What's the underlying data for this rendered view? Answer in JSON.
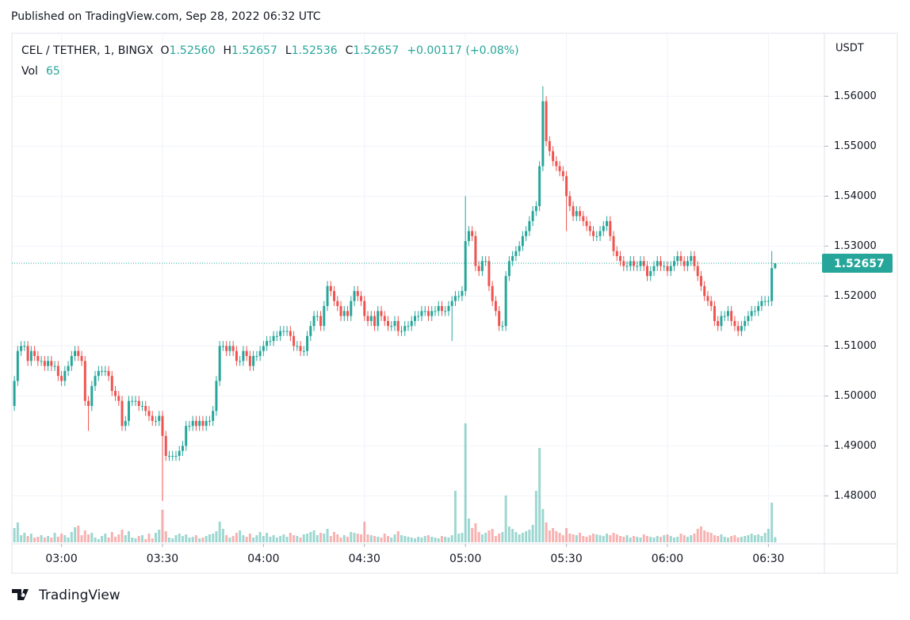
{
  "published": "Published on TradingView.com, Sep 28, 2022 06:32 UTC",
  "brand": "TradingView",
  "chart_data": {
    "type": "candlestick",
    "legend": {
      "symbol": "CEL / TETHER, 1, BINGX",
      "o": "O",
      "o_value": "1.52560",
      "h": "H",
      "h_value": "1.52657",
      "l": "L",
      "l_value": "1.52536",
      "c": "C",
      "c_value": "1.52657",
      "change": "+0.00117 (+0.08%)",
      "vol": "Vol"
    },
    "currency": "USDT",
    "up_color": "#26a69a",
    "down_color": "#ef5350",
    "grid": true,
    "x": [
      "02:46",
      "02:47",
      "02:48",
      "02:49",
      "02:50",
      "02:51",
      "02:52",
      "02:53",
      "02:54",
      "02:55",
      "02:56",
      "02:57",
      "02:58",
      "02:59",
      "03:00",
      "03:01",
      "03:02",
      "03:03",
      "03:04",
      "03:05",
      "03:06",
      "03:07",
      "03:08",
      "03:09",
      "03:10",
      "03:11",
      "03:12",
      "03:13",
      "03:14",
      "03:15",
      "03:16",
      "03:17",
      "03:18",
      "03:19",
      "03:20",
      "03:21",
      "03:22",
      "03:23",
      "03:24",
      "03:25",
      "03:26",
      "03:27",
      "03:28",
      "03:29",
      "03:30",
      "03:31",
      "03:32",
      "03:33",
      "03:34",
      "03:35",
      "03:36",
      "03:37",
      "03:38",
      "03:39",
      "03:40",
      "03:41",
      "03:42",
      "03:43",
      "03:44",
      "03:45",
      "03:46",
      "03:47",
      "03:48",
      "03:49",
      "03:50",
      "03:51",
      "03:52",
      "03:53",
      "03:54",
      "03:55",
      "03:56",
      "03:57",
      "03:58",
      "03:59",
      "04:00",
      "04:01",
      "04:02",
      "04:03",
      "04:04",
      "04:05",
      "04:06",
      "04:07",
      "04:08",
      "04:09",
      "04:10",
      "04:11",
      "04:12",
      "04:13",
      "04:14",
      "04:15",
      "04:16",
      "04:17",
      "04:18",
      "04:19",
      "04:20",
      "04:21",
      "04:22",
      "04:23",
      "04:24",
      "04:25",
      "04:26",
      "04:27",
      "04:28",
      "04:29",
      "04:30",
      "04:31",
      "04:32",
      "04:33",
      "04:34",
      "04:35",
      "04:36",
      "04:37",
      "04:38",
      "04:39",
      "04:40",
      "04:41",
      "04:42",
      "04:43",
      "04:44",
      "04:45",
      "04:46",
      "04:47",
      "04:48",
      "04:49",
      "04:50",
      "04:51",
      "04:52",
      "04:53",
      "04:54",
      "04:55",
      "04:56",
      "04:57",
      "04:58",
      "04:59",
      "05:00",
      "05:01",
      "05:02",
      "05:03",
      "05:04",
      "05:05",
      "05:06",
      "05:07",
      "05:08",
      "05:09",
      "05:10",
      "05:11",
      "05:12",
      "05:13",
      "05:14",
      "05:15",
      "05:16",
      "05:17",
      "05:18",
      "05:19",
      "05:20",
      "05:21",
      "05:22",
      "05:23",
      "05:24",
      "05:25",
      "05:26",
      "05:27",
      "05:28",
      "05:29",
      "05:30",
      "05:31",
      "05:32",
      "05:33",
      "05:34",
      "05:35",
      "05:36",
      "05:37",
      "05:38",
      "05:39",
      "05:40",
      "05:41",
      "05:42",
      "05:43",
      "05:44",
      "05:45",
      "05:46",
      "05:47",
      "05:48",
      "05:49",
      "05:50",
      "05:51",
      "05:52",
      "05:53",
      "05:54",
      "05:55",
      "05:56",
      "05:57",
      "05:58",
      "05:59",
      "06:00",
      "06:01",
      "06:02",
      "06:03",
      "06:04",
      "06:05",
      "06:06",
      "06:07",
      "06:08",
      "06:09",
      "06:10",
      "06:11",
      "06:12",
      "06:13",
      "06:14",
      "06:15",
      "06:16",
      "06:17",
      "06:18",
      "06:19",
      "06:20",
      "06:21",
      "06:22",
      "06:23",
      "06:24",
      "06:25",
      "06:26",
      "06:27",
      "06:28",
      "06:29",
      "06:30",
      "06:31",
      "06:32"
    ],
    "open": [
      1.498,
      1.503,
      1.509,
      1.51,
      1.51,
      1.507,
      1.509,
      1.508,
      1.507,
      1.507,
      1.506,
      1.507,
      1.506,
      1.506,
      1.504,
      1.503,
      1.505,
      1.506,
      1.508,
      1.509,
      1.508,
      1.507,
      1.499,
      1.498,
      1.502,
      1.504,
      1.505,
      1.505,
      1.505,
      1.504,
      1.501,
      1.5,
      1.499,
      1.494,
      1.495,
      1.499,
      1.499,
      1.499,
      1.498,
      1.498,
      1.497,
      1.496,
      1.495,
      1.495,
      1.496,
      1.492,
      1.488,
      1.488,
      1.488,
      1.488,
      1.489,
      1.49,
      1.494,
      1.494,
      1.495,
      1.494,
      1.495,
      1.494,
      1.495,
      1.495,
      1.497,
      1.503,
      1.51,
      1.51,
      1.509,
      1.51,
      1.509,
      1.507,
      1.507,
      1.509,
      1.508,
      1.506,
      1.508,
      1.508,
      1.509,
      1.51,
      1.511,
      1.511,
      1.512,
      1.512,
      1.513,
      1.513,
      1.513,
      1.512,
      1.51,
      1.51,
      1.509,
      1.509,
      1.512,
      1.514,
      1.516,
      1.516,
      1.514,
      1.518,
      1.522,
      1.521,
      1.519,
      1.518,
      1.516,
      1.517,
      1.516,
      1.519,
      1.521,
      1.52,
      1.519,
      1.516,
      1.515,
      1.516,
      1.514,
      1.517,
      1.516,
      1.515,
      1.514,
      1.514,
      1.515,
      1.513,
      1.513,
      1.514,
      1.514,
      1.515,
      1.516,
      1.516,
      1.517,
      1.517,
      1.516,
      1.517,
      1.517,
      1.518,
      1.517,
      1.517,
      1.518,
      1.519,
      1.52,
      1.52,
      1.521,
      1.531,
      1.533,
      1.532,
      1.526,
      1.525,
      1.527,
      1.527,
      1.522,
      1.519,
      1.517,
      1.514,
      1.514,
      1.524,
      1.527,
      1.528,
      1.529,
      1.53,
      1.532,
      1.533,
      1.535,
      1.537,
      1.538,
      1.546,
      1.559,
      1.551,
      1.549,
      1.547,
      1.546,
      1.545,
      1.544,
      1.54,
      1.538,
      1.536,
      1.537,
      1.536,
      1.535,
      1.534,
      1.533,
      1.532,
      1.532,
      1.533,
      1.534,
      1.535,
      1.532,
      1.529,
      1.528,
      1.527,
      1.526,
      1.526,
      1.527,
      1.526,
      1.526,
      1.527,
      1.526,
      1.524,
      1.525,
      1.526,
      1.527,
      1.526,
      1.526,
      1.525,
      1.526,
      1.527,
      1.528,
      1.527,
      1.526,
      1.527,
      1.528,
      1.526,
      1.524,
      1.522,
      1.52,
      1.519,
      1.518,
      1.515,
      1.514,
      1.516,
      1.516,
      1.517,
      1.515,
      1.514,
      1.513,
      1.514,
      1.515,
      1.516,
      1.517,
      1.517,
      1.518,
      1.519,
      1.519,
      1.519,
      1.5256
    ],
    "high": [
      1.504,
      1.51,
      1.511,
      1.511,
      1.511,
      1.51,
      1.51,
      1.509,
      1.508,
      1.508,
      1.508,
      1.508,
      1.507,
      1.507,
      1.505,
      1.506,
      1.507,
      1.509,
      1.51,
      1.51,
      1.509,
      1.508,
      1.5,
      1.503,
      1.505,
      1.506,
      1.506,
      1.506,
      1.506,
      1.505,
      1.502,
      1.501,
      1.5,
      1.496,
      1.5,
      1.5,
      1.5,
      1.5,
      1.499,
      1.499,
      1.498,
      1.497,
      1.496,
      1.497,
      1.497,
      1.493,
      1.489,
      1.489,
      1.489,
      1.49,
      1.491,
      1.495,
      1.495,
      1.496,
      1.496,
      1.496,
      1.496,
      1.496,
      1.496,
      1.498,
      1.504,
      1.511,
      1.511,
      1.511,
      1.511,
      1.511,
      1.51,
      1.508,
      1.51,
      1.51,
      1.509,
      1.509,
      1.509,
      1.51,
      1.511,
      1.512,
      1.512,
      1.513,
      1.513,
      1.514,
      1.514,
      1.514,
      1.514,
      1.513,
      1.511,
      1.511,
      1.51,
      1.513,
      1.515,
      1.517,
      1.517,
      1.517,
      1.519,
      1.523,
      1.523,
      1.522,
      1.52,
      1.519,
      1.518,
      1.518,
      1.52,
      1.522,
      1.522,
      1.521,
      1.52,
      1.517,
      1.517,
      1.517,
      1.518,
      1.518,
      1.517,
      1.516,
      1.515,
      1.516,
      1.516,
      1.514,
      1.515,
      1.515,
      1.516,
      1.517,
      1.517,
      1.518,
      1.518,
      1.518,
      1.518,
      1.518,
      1.519,
      1.519,
      1.518,
      1.519,
      1.52,
      1.521,
      1.521,
      1.522,
      1.54,
      1.534,
      1.534,
      1.533,
      1.527,
      1.528,
      1.528,
      1.528,
      1.523,
      1.52,
      1.518,
      1.515,
      1.525,
      1.528,
      1.529,
      1.53,
      1.531,
      1.533,
      1.534,
      1.536,
      1.538,
      1.539,
      1.547,
      1.562,
      1.56,
      1.552,
      1.55,
      1.548,
      1.547,
      1.546,
      1.545,
      1.541,
      1.539,
      1.538,
      1.538,
      1.537,
      1.536,
      1.535,
      1.534,
      1.533,
      1.534,
      1.535,
      1.536,
      1.536,
      1.533,
      1.53,
      1.529,
      1.528,
      1.527,
      1.528,
      1.528,
      1.527,
      1.528,
      1.528,
      1.527,
      1.526,
      1.527,
      1.528,
      1.528,
      1.527,
      1.527,
      1.527,
      1.528,
      1.529,
      1.529,
      1.528,
      1.528,
      1.529,
      1.529,
      1.527,
      1.525,
      1.523,
      1.521,
      1.52,
      1.519,
      1.516,
      1.517,
      1.517,
      1.518,
      1.518,
      1.516,
      1.515,
      1.515,
      1.516,
      1.517,
      1.518,
      1.518,
      1.519,
      1.52,
      1.52,
      1.52,
      1.529,
      1.52657
    ],
    "low": [
      1.497,
      1.502,
      1.508,
      1.509,
      1.506,
      1.506,
      1.507,
      1.506,
      1.506,
      1.505,
      1.505,
      1.505,
      1.505,
      1.503,
      1.502,
      1.502,
      1.504,
      1.505,
      1.507,
      1.507,
      1.506,
      1.498,
      1.493,
      1.497,
      1.501,
      1.503,
      1.504,
      1.504,
      1.503,
      1.5,
      1.499,
      1.498,
      1.493,
      1.493,
      1.494,
      1.498,
      1.498,
      1.497,
      1.497,
      1.496,
      1.495,
      1.494,
      1.494,
      1.494,
      1.479,
      1.487,
      1.487,
      1.487,
      1.487,
      1.487,
      1.488,
      1.489,
      1.493,
      1.493,
      1.493,
      1.493,
      1.493,
      1.493,
      1.494,
      1.494,
      1.496,
      1.502,
      1.509,
      1.508,
      1.508,
      1.508,
      1.506,
      1.506,
      1.506,
      1.507,
      1.505,
      1.505,
      1.507,
      1.507,
      1.508,
      1.509,
      1.51,
      1.51,
      1.511,
      1.511,
      1.512,
      1.512,
      1.511,
      1.509,
      1.509,
      1.508,
      1.508,
      1.508,
      1.511,
      1.513,
      1.515,
      1.513,
      1.513,
      1.517,
      1.52,
      1.518,
      1.517,
      1.515,
      1.515,
      1.515,
      1.515,
      1.518,
      1.519,
      1.518,
      1.515,
      1.514,
      1.514,
      1.513,
      1.513,
      1.515,
      1.514,
      1.513,
      1.513,
      1.513,
      1.512,
      1.512,
      1.512,
      1.513,
      1.513,
      1.514,
      1.515,
      1.515,
      1.516,
      1.515,
      1.515,
      1.516,
      1.516,
      1.516,
      1.516,
      1.516,
      1.511,
      1.518,
      1.519,
      1.519,
      1.52,
      1.53,
      1.531,
      1.525,
      1.524,
      1.524,
      1.526,
      1.521,
      1.518,
      1.516,
      1.513,
      1.513,
      1.513,
      1.523,
      1.526,
      1.527,
      1.528,
      1.529,
      1.531,
      1.532,
      1.534,
      1.536,
      1.537,
      1.545,
      1.55,
      1.548,
      1.546,
      1.545,
      1.544,
      1.543,
      1.533,
      1.537,
      1.535,
      1.535,
      1.535,
      1.534,
      1.533,
      1.532,
      1.531,
      1.531,
      1.531,
      1.532,
      1.533,
      1.531,
      1.528,
      1.527,
      1.526,
      1.525,
      1.525,
      1.525,
      1.525,
      1.525,
      1.525,
      1.525,
      1.523,
      1.523,
      1.524,
      1.525,
      1.525,
      1.525,
      1.524,
      1.524,
      1.525,
      1.526,
      1.526,
      1.525,
      1.525,
      1.526,
      1.525,
      1.523,
      1.521,
      1.519,
      1.518,
      1.517,
      1.514,
      1.513,
      1.513,
      1.515,
      1.515,
      1.514,
      1.513,
      1.512,
      1.512,
      1.513,
      1.514,
      1.515,
      1.516,
      1.516,
      1.517,
      1.518,
      1.518,
      1.518,
      1.52536
    ],
    "close": [
      1.503,
      1.509,
      1.51,
      1.51,
      1.507,
      1.509,
      1.508,
      1.507,
      1.507,
      1.506,
      1.507,
      1.506,
      1.506,
      1.504,
      1.503,
      1.505,
      1.506,
      1.508,
      1.509,
      1.508,
      1.507,
      1.499,
      1.498,
      1.502,
      1.504,
      1.505,
      1.505,
      1.505,
      1.504,
      1.501,
      1.5,
      1.499,
      1.494,
      1.495,
      1.499,
      1.499,
      1.499,
      1.498,
      1.498,
      1.497,
      1.496,
      1.495,
      1.495,
      1.496,
      1.492,
      1.488,
      1.488,
      1.488,
      1.488,
      1.489,
      1.49,
      1.494,
      1.494,
      1.495,
      1.494,
      1.495,
      1.494,
      1.495,
      1.495,
      1.497,
      1.503,
      1.51,
      1.51,
      1.509,
      1.51,
      1.509,
      1.507,
      1.507,
      1.509,
      1.508,
      1.506,
      1.508,
      1.508,
      1.509,
      1.51,
      1.511,
      1.511,
      1.512,
      1.512,
      1.513,
      1.513,
      1.513,
      1.512,
      1.51,
      1.51,
      1.509,
      1.509,
      1.512,
      1.514,
      1.516,
      1.516,
      1.514,
      1.518,
      1.522,
      1.521,
      1.519,
      1.518,
      1.516,
      1.517,
      1.516,
      1.519,
      1.521,
      1.52,
      1.519,
      1.516,
      1.515,
      1.516,
      1.514,
      1.517,
      1.516,
      1.515,
      1.514,
      1.514,
      1.515,
      1.513,
      1.513,
      1.514,
      1.514,
      1.515,
      1.516,
      1.516,
      1.517,
      1.517,
      1.516,
      1.517,
      1.517,
      1.518,
      1.517,
      1.517,
      1.518,
      1.519,
      1.52,
      1.52,
      1.521,
      1.531,
      1.533,
      1.532,
      1.526,
      1.525,
      1.527,
      1.527,
      1.522,
      1.519,
      1.517,
      1.514,
      1.514,
      1.524,
      1.527,
      1.528,
      1.529,
      1.53,
      1.532,
      1.533,
      1.535,
      1.537,
      1.538,
      1.546,
      1.559,
      1.551,
      1.549,
      1.547,
      1.546,
      1.545,
      1.544,
      1.54,
      1.538,
      1.536,
      1.537,
      1.536,
      1.535,
      1.534,
      1.533,
      1.532,
      1.532,
      1.533,
      1.534,
      1.535,
      1.532,
      1.529,
      1.528,
      1.527,
      1.526,
      1.526,
      1.527,
      1.526,
      1.526,
      1.527,
      1.526,
      1.524,
      1.525,
      1.526,
      1.527,
      1.526,
      1.526,
      1.525,
      1.526,
      1.527,
      1.528,
      1.527,
      1.526,
      1.527,
      1.528,
      1.526,
      1.524,
      1.522,
      1.52,
      1.519,
      1.518,
      1.515,
      1.514,
      1.516,
      1.516,
      1.517,
      1.515,
      1.514,
      1.513,
      1.514,
      1.515,
      1.516,
      1.517,
      1.517,
      1.518,
      1.519,
      1.519,
      1.519,
      1.5256,
      1.52657
    ],
    "volume": [
      180,
      250,
      90,
      120,
      80,
      110,
      60,
      70,
      90,
      60,
      80,
      60,
      120,
      70,
      110,
      90,
      60,
      130,
      190,
      210,
      90,
      150,
      100,
      120,
      60,
      40,
      80,
      110,
      60,
      130,
      70,
      100,
      160,
      90,
      140,
      60,
      50,
      80,
      90,
      40,
      110,
      50,
      120,
      160,
      410,
      140,
      60,
      50,
      90,
      110,
      80,
      100,
      60,
      70,
      90,
      50,
      60,
      80,
      100,
      110,
      140,
      260,
      170,
      90,
      60,
      80,
      120,
      150,
      90,
      70,
      110,
      60,
      90,
      130,
      80,
      120,
      70,
      90,
      60,
      80,
      100,
      70,
      120,
      90,
      80,
      60,
      100,
      110,
      130,
      150,
      90,
      120,
      110,
      170,
      80,
      130,
      100,
      60,
      90,
      70,
      130,
      120,
      110,
      100,
      260,
      100,
      90,
      80,
      70,
      60,
      110,
      80,
      60,
      100,
      140,
      90,
      80,
      70,
      60,
      50,
      70,
      60,
      80,
      90,
      70,
      60,
      50,
      80,
      70,
      60,
      90,
      650,
      110,
      120,
      1500,
      300,
      180,
      240,
      130,
      100,
      120,
      150,
      170,
      80,
      110,
      130,
      590,
      200,
      170,
      130,
      100,
      120,
      140,
      160,
      220,
      650,
      1190,
      420,
      250,
      150,
      180,
      140,
      120,
      90,
      180,
      110,
      100,
      90,
      120,
      80,
      70,
      90,
      110,
      100,
      90,
      80,
      110,
      90,
      120,
      100,
      80,
      70,
      90,
      60,
      80,
      70,
      60,
      100,
      80,
      70,
      60,
      80,
      70,
      90,
      100,
      80,
      60,
      70,
      110,
      90,
      70,
      90,
      110,
      170,
      200,
      150,
      130,
      120,
      90,
      80,
      100,
      70,
      60,
      80,
      90,
      60,
      70,
      80,
      90,
      110,
      90,
      100,
      80,
      120,
      170,
      500,
      65
    ],
    "ylim": [
      1.4707,
      1.5726
    ],
    "yticks": [
      {
        "value": 1.48,
        "label": "1.48000"
      },
      {
        "value": 1.49,
        "label": "1.49000"
      },
      {
        "value": 1.5,
        "label": "1.50000"
      },
      {
        "value": 1.51,
        "label": "1.51000"
      },
      {
        "value": 1.52,
        "label": "1.52000"
      },
      {
        "value": 1.53,
        "label": "1.53000"
      },
      {
        "value": 1.54,
        "label": "1.54000"
      },
      {
        "value": 1.55,
        "label": "1.55000"
      },
      {
        "value": 1.56,
        "label": "1.56000"
      }
    ],
    "xticks": [
      "03:00",
      "03:30",
      "04:00",
      "04:30",
      "05:00",
      "05:30",
      "06:00",
      "06:30"
    ]
  }
}
